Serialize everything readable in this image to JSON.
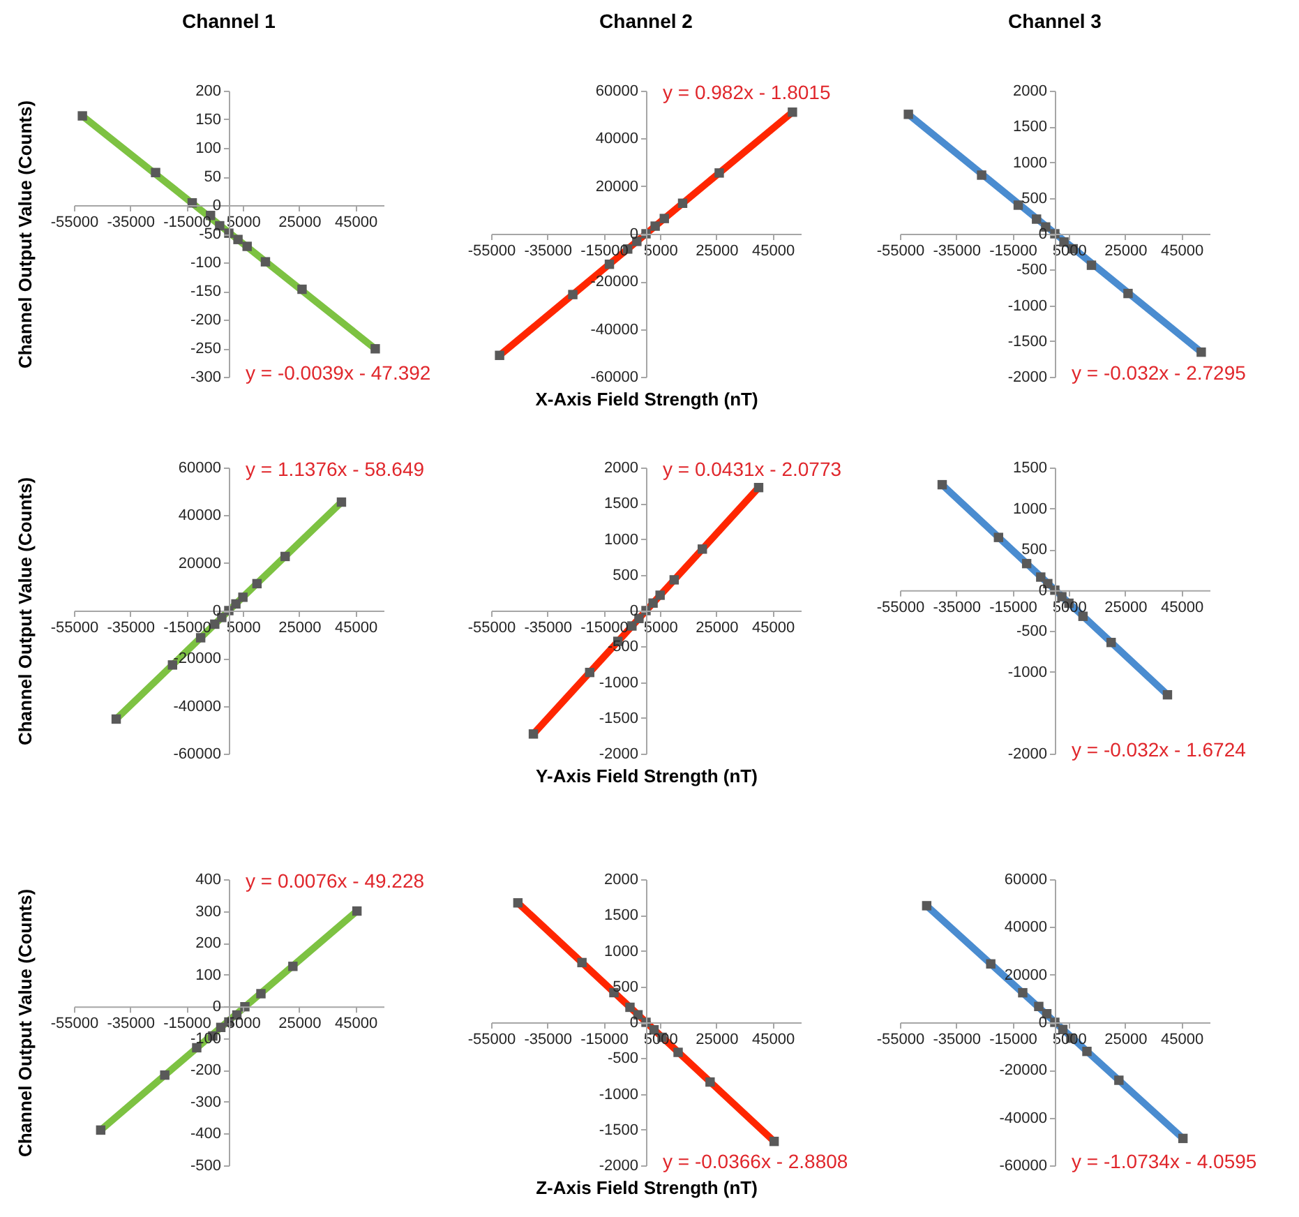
{
  "chart_data": [
    {
      "type": "scatter",
      "title": "Channel 1",
      "ylabel": "Channel Output Value (Counts)",
      "annotations": [
        "y = -0.0039x - 47.392"
      ],
      "xlim": [
        -55000,
        55000
      ],
      "xticks": [
        -55000,
        -35000,
        -15000,
        5000,
        25000,
        45000
      ],
      "ylim": [
        -300,
        200
      ],
      "yticks": [
        -300,
        -250,
        -200,
        -150,
        -100,
        -50,
        0,
        50,
        100,
        150,
        200
      ],
      "x": [
        -52000,
        -26000,
        -13000,
        -6500,
        -3250,
        0,
        3250,
        6500,
        13000,
        26000,
        52000
      ],
      "series": [
        {
          "type": "line",
          "color": "#7dc242",
          "x": [
            -52000,
            52000
          ],
          "values": [
            156,
            -251
          ]
        },
        {
          "type": "scatter",
          "color": "#595959",
          "marker": "square",
          "values": [
            156,
            57,
            4,
            -18,
            -36,
            -49,
            -60,
            -72,
            -99,
            -147,
            -251
          ]
        }
      ]
    },
    {
      "type": "scatter",
      "title": "Channel 2",
      "xlabel": "X-Axis Field Strength (nT)",
      "annotations": [
        "y = 0.982x - 1.8015"
      ],
      "xlim": [
        -55000,
        55000
      ],
      "xticks": [
        -55000,
        -35000,
        -15000,
        5000,
        25000,
        45000
      ],
      "ylim": [
        -60000,
        60000
      ],
      "yticks": [
        -60000,
        -40000,
        -20000,
        0,
        20000,
        40000,
        60000
      ],
      "x": [
        -52000,
        -26000,
        -13000,
        -6500,
        -3250,
        0,
        3250,
        6500,
        13000,
        26000,
        52000
      ],
      "series": [
        {
          "type": "line",
          "color": "#ff2600",
          "x": [
            -52000,
            52000
          ],
          "values": [
            -51000,
            51000
          ]
        },
        {
          "type": "scatter",
          "color": "#595959",
          "marker": "square",
          "values": [
            -51000,
            -25500,
            -12800,
            -6400,
            -3200,
            0,
            3200,
            6400,
            12800,
            25500,
            51000
          ]
        }
      ]
    },
    {
      "type": "scatter",
      "title": "Channel 3",
      "annotations": [
        "y = -0.032x - 2.7295"
      ],
      "xlim": [
        -55000,
        55000
      ],
      "xticks": [
        -55000,
        -35000,
        -15000,
        5000,
        25000,
        45000
      ],
      "ylim": [
        -2000,
        2000
      ],
      "yticks": [
        -2000,
        -1500,
        -1000,
        -500,
        0,
        500,
        1000,
        1500,
        2000
      ],
      "x": [
        -52000,
        -26000,
        -13000,
        -6500,
        -3250,
        0,
        3250,
        6500,
        13000,
        26000,
        52000
      ],
      "series": [
        {
          "type": "line",
          "color": "#4a8cd0",
          "x": [
            -52000,
            52000
          ],
          "values": [
            1670,
            -1655
          ]
        },
        {
          "type": "scatter",
          "color": "#595959",
          "marker": "square",
          "values": [
            1670,
            820,
            400,
            205,
            95,
            0,
            -115,
            -210,
            -440,
            -835,
            -1655
          ]
        }
      ]
    },
    {
      "type": "scatter",
      "ylabel": "Channel Output Value (Counts)",
      "annotations": [
        "y = 1.1376x - 58.649"
      ],
      "xlim": [
        -55000,
        55000
      ],
      "xticks": [
        -55000,
        -35000,
        -15000,
        5000,
        25000,
        45000
      ],
      "ylim": [
        -60000,
        60000
      ],
      "yticks": [
        -60000,
        -40000,
        -20000,
        0,
        20000,
        40000,
        60000
      ],
      "x": [
        -40000,
        -20000,
        -10000,
        -5000,
        -2500,
        0,
        2500,
        5000,
        10000,
        20000,
        40000
      ],
      "series": [
        {
          "type": "line",
          "color": "#7dc242",
          "x": [
            -40000,
            40000
          ],
          "values": [
            -45500,
            45500
          ]
        },
        {
          "type": "scatter",
          "color": "#595959",
          "marker": "square",
          "values": [
            -45500,
            -22800,
            -11400,
            -5700,
            -2900,
            0,
            2800,
            5600,
            11300,
            22700,
            45500
          ]
        }
      ]
    },
    {
      "type": "scatter",
      "xlabel": "Y-Axis Field Strength (nT)",
      "annotations": [
        "y = 0.0431x - 2.0773"
      ],
      "xlim": [
        -55000,
        55000
      ],
      "xticks": [
        -55000,
        -35000,
        -15000,
        5000,
        25000,
        45000
      ],
      "ylim": [
        -2000,
        2000
      ],
      "yticks": [
        -2000,
        -1500,
        -1000,
        -500,
        0,
        500,
        1000,
        1500,
        2000
      ],
      "x": [
        -40000,
        -20000,
        -10000,
        -5000,
        -2500,
        0,
        2500,
        5000,
        10000,
        20000,
        40000
      ],
      "series": [
        {
          "type": "line",
          "color": "#ff2600",
          "x": [
            -40000,
            40000
          ],
          "values": [
            -1725,
            1720
          ]
        },
        {
          "type": "scatter",
          "color": "#595959",
          "marker": "square",
          "values": [
            -1725,
            -865,
            -430,
            -215,
            -110,
            0,
            105,
            215,
            430,
            860,
            1720
          ]
        }
      ]
    },
    {
      "type": "scatter",
      "annotations": [
        "y = -0.032x - 1.6724"
      ],
      "xlim": [
        -55000,
        55000
      ],
      "xticks": [
        -55000,
        -35000,
        -15000,
        5000,
        25000,
        45000
      ],
      "ylim": [
        -2000,
        1500
      ],
      "yticks": [
        -2000,
        -1000,
        -500,
        0,
        500,
        1000,
        1500
      ],
      "x": [
        -40000,
        -20000,
        -10000,
        -5000,
        -2500,
        0,
        2500,
        5000,
        10000,
        20000,
        40000
      ],
      "series": [
        {
          "type": "line",
          "color": "#4a8cd0",
          "x": [
            -40000,
            40000
          ],
          "values": [
            1290,
            -1280
          ]
        },
        {
          "type": "scatter",
          "color": "#595959",
          "marker": "square",
          "values": [
            1290,
            645,
            325,
            160,
            80,
            0,
            -80,
            -160,
            -320,
            -640,
            -1280
          ]
        }
      ]
    },
    {
      "type": "scatter",
      "ylabel": "Channel Output Value (Counts)",
      "annotations": [
        "y = 0.0076x - 49.228"
      ],
      "xlim": [
        -55000,
        55000
      ],
      "xticks": [
        -55000,
        -35000,
        -15000,
        5000,
        25000,
        45000
      ],
      "ylim": [
        -500,
        400
      ],
      "yticks": [
        -500,
        -400,
        -300,
        -200,
        -100,
        0,
        100,
        200,
        300,
        400
      ],
      "x": [
        -45500,
        -22750,
        -11400,
        -5700,
        -2850,
        0,
        2850,
        5700,
        11400,
        22750,
        45500
      ],
      "series": [
        {
          "type": "line",
          "color": "#7dc242",
          "x": [
            -45500,
            45500
          ],
          "values": [
            -389,
            300
          ]
        },
        {
          "type": "scatter",
          "color": "#595959",
          "marker": "square",
          "values": [
            -389,
            -216,
            -130,
            -93,
            -66,
            -49,
            -27,
            -1,
            40,
            126,
            300
          ]
        }
      ]
    },
    {
      "type": "scatter",
      "xlabel": "Z-Axis Field Strength (nT)",
      "annotations": [
        "y = -0.0366x - 2.8808"
      ],
      "xlim": [
        -55000,
        55000
      ],
      "xticks": [
        -55000,
        -35000,
        -15000,
        5000,
        25000,
        45000
      ],
      "ylim": [
        -2000,
        2000
      ],
      "yticks": [
        -2000,
        -1500,
        -1000,
        -500,
        0,
        500,
        1000,
        1500,
        2000
      ],
      "x": [
        -45500,
        -22750,
        -11400,
        -5700,
        -2850,
        0,
        2850,
        5700,
        11400,
        22750,
        45500
      ],
      "series": [
        {
          "type": "line",
          "color": "#ff2600",
          "x": [
            -45500,
            45500
          ],
          "values": [
            1670,
            -1665
          ]
        },
        {
          "type": "scatter",
          "color": "#595959",
          "marker": "square",
          "values": [
            1670,
            835,
            415,
            210,
            105,
            0,
            -105,
            -210,
            -420,
            -835,
            -1665
          ]
        }
      ]
    },
    {
      "type": "scatter",
      "annotations": [
        "y = -1.0734x - 4.0595"
      ],
      "xlim": [
        -55000,
        55000
      ],
      "xticks": [
        -55000,
        -35000,
        -15000,
        5000,
        25000,
        45000
      ],
      "ylim": [
        -60000,
        60000
      ],
      "yticks": [
        -60000,
        -40000,
        -20000,
        0,
        20000,
        40000,
        60000
      ],
      "x": [
        -45500,
        -22750,
        -11400,
        -5700,
        -2850,
        0,
        2850,
        5700,
        11400,
        22750,
        45500
      ],
      "series": [
        {
          "type": "line",
          "color": "#4a8cd0",
          "x": [
            -45500,
            45500
          ],
          "values": [
            48900,
            -48700
          ]
        },
        {
          "type": "scatter",
          "color": "#595959",
          "marker": "square",
          "values": [
            48900,
            24500,
            12400,
            6650,
            3600,
            0,
            -3000,
            -6650,
            -12200,
            -24300,
            -48700
          ]
        }
      ]
    }
  ]
}
